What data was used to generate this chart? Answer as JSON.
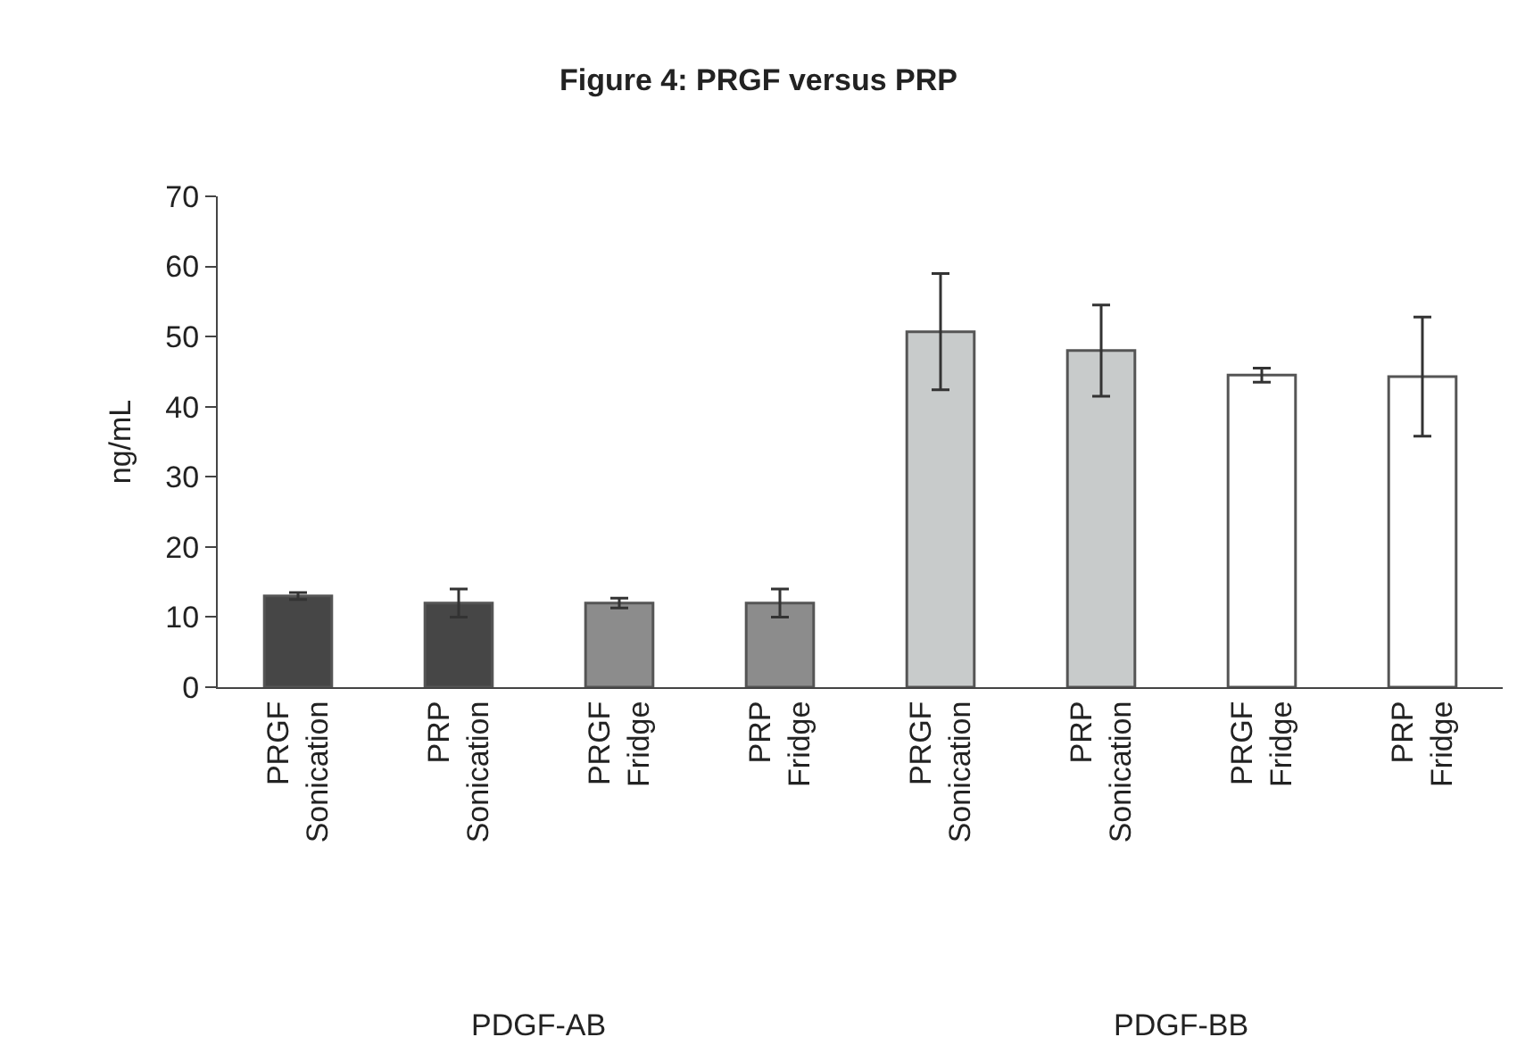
{
  "chart_data": {
    "type": "bar",
    "title": "Figure 4: PRGF versus PRP",
    "ylabel": "ng/mL",
    "categories": [
      "PRGF\nSonication",
      "PRP\nSonication",
      "PRGF\nFridge",
      "PRP\nFridge",
      "PRGF\nSonication",
      "PRP\nSonication",
      "PRGF\nFridge",
      "PRP\nFridge"
    ],
    "values": [
      13,
      12,
      12,
      12,
      50.7,
      48,
      44.5,
      44.3
    ],
    "errors": [
      0.5,
      2,
      0.7,
      2,
      8.3,
      6.5,
      1,
      8.5
    ],
    "colors": [
      "#464646",
      "#464646",
      "#8c8c8c",
      "#8c8c8c",
      "#c8cbcb",
      "#c8cbcb",
      "#ffffff",
      "#ffffff"
    ],
    "ylim": [
      0,
      70
    ],
    "yticks": [
      0,
      10,
      20,
      30,
      40,
      50,
      60,
      70
    ],
    "annotations": [
      "PDGF-AB",
      "PDGF-BB"
    ]
  }
}
